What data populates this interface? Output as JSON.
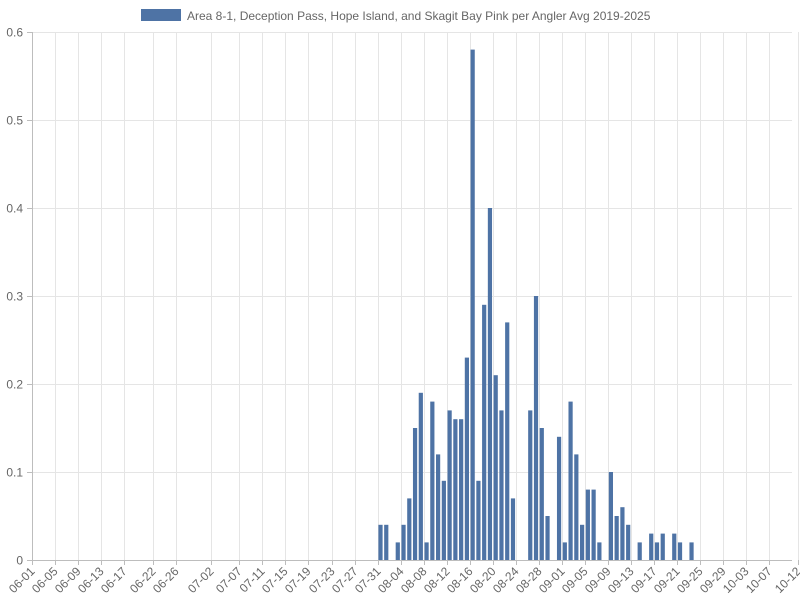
{
  "chart_data": {
    "type": "bar",
    "legend": {
      "label": "Area 8-1, Deception Pass, Hope Island, and Skagit Bay Pink per Angler Avg 2019-2025",
      "placement": "top-center",
      "color": "#4e73a5"
    },
    "bar_color": "#4e73a5",
    "grid": true,
    "ylim": [
      0,
      0.6
    ],
    "y_ticks": [
      "0",
      "0.1",
      "0.2",
      "0.3",
      "0.4",
      "0.5",
      "0.6"
    ],
    "x_tick_labels": [
      "06-01",
      "06-05",
      "06-09",
      "06-13",
      "06-17",
      "06-22",
      "06-26",
      "07-02",
      "07-07",
      "07-11",
      "07-15",
      "07-19",
      "07-23",
      "07-27",
      "07-31",
      "08-04",
      "08-08",
      "08-12",
      "08-16",
      "08-20",
      "08-24",
      "08-28",
      "09-01",
      "09-05",
      "09-09",
      "09-13",
      "09-17",
      "09-21",
      "09-25",
      "09-29",
      "10-03",
      "10-07",
      "10-12"
    ],
    "categories": [
      "07-31",
      "08-01",
      "08-03",
      "08-04",
      "08-05",
      "08-06",
      "08-07",
      "08-08",
      "08-09",
      "08-10",
      "08-11",
      "08-12",
      "08-13",
      "08-14",
      "08-15",
      "08-16",
      "08-17",
      "08-18",
      "08-19",
      "08-20",
      "08-21",
      "08-22",
      "08-23",
      "08-26",
      "08-27",
      "08-28",
      "08-29",
      "08-31",
      "09-01",
      "09-02",
      "09-03",
      "09-04",
      "09-05",
      "09-06",
      "09-07",
      "09-09",
      "09-10",
      "09-11",
      "09-12",
      "09-14",
      "09-16",
      "09-17",
      "09-18",
      "09-20",
      "09-21",
      "09-23"
    ],
    "values": [
      0.04,
      0.04,
      0.02,
      0.04,
      0.07,
      0.15,
      0.19,
      0.02,
      0.18,
      0.12,
      0.09,
      0.17,
      0.16,
      0.16,
      0.23,
      0.58,
      0.09,
      0.29,
      0.4,
      0.21,
      0.17,
      0.27,
      0.07,
      0.17,
      0.3,
      0.15,
      0.05,
      0.14,
      0.02,
      0.18,
      0.12,
      0.04,
      0.08,
      0.08,
      0.02,
      0.1,
      0.05,
      0.06,
      0.04,
      0.02,
      0.03,
      0.02,
      0.03,
      0.03,
      0.02,
      0.02
    ]
  }
}
